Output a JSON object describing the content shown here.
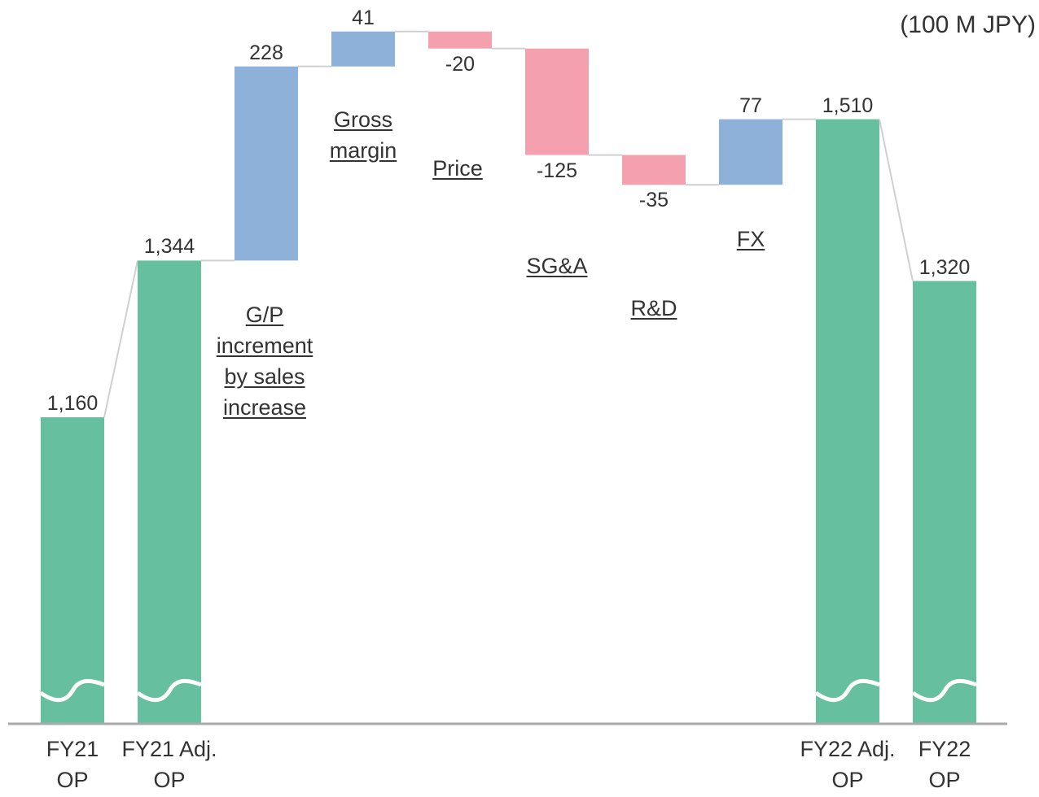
{
  "chart_data": {
    "type": "waterfall",
    "unit_label": "(100 M JPY)",
    "categories": [
      "FY21 OP",
      "FY21 Adj. OP",
      "G/P increment by sales increase",
      "Gross margin",
      "Price",
      "SG&A",
      "R&D",
      "FX",
      "FY22 Adj. OP",
      "FY22 OP"
    ],
    "measures": [
      "total",
      "total",
      "relative",
      "relative",
      "relative",
      "relative",
      "relative",
      "relative",
      "total",
      "total"
    ],
    "values": [
      1160,
      1344,
      228,
      41,
      -20,
      -125,
      -35,
      77,
      1510,
      1320
    ],
    "value_labels": [
      "1,160",
      "1,344",
      "228",
      "41",
      "-20",
      "-125",
      "-35",
      "77",
      "1,510",
      "1,320"
    ],
    "colors": {
      "total": "#66c0a0",
      "increase": "#8eb1d9",
      "decrease": "#f4a0ae"
    },
    "ylim": [
      800,
      1650
    ],
    "axis_break": true
  }
}
